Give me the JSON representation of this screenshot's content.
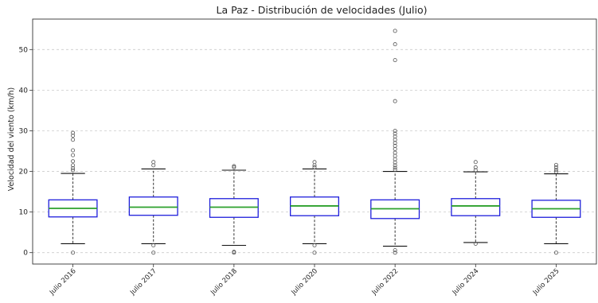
{
  "chart_data": {
    "type": "box",
    "title": "La Paz - Distribución de velocidades (Julio)",
    "xlabel": "",
    "ylabel": "Velocidad del viento (km/h)",
    "ylim": [
      -2.8,
      57.5
    ],
    "yticks": [
      0,
      10,
      20,
      30,
      40,
      50
    ],
    "grid": "y-dashed",
    "colors": {
      "box": "#1f1fdc",
      "median": "#2ca02c",
      "whisker": "#333333",
      "outlier": "#555555",
      "grid": "#cccccc"
    },
    "categories": [
      "Julio 2016",
      "Julio 2017",
      "Julio 2018",
      "Julio 2020",
      "Julio 2022",
      "Julio 2024",
      "Julio 2025"
    ],
    "boxes": [
      {
        "whislo": 2.2,
        "q1": 8.8,
        "med": 10.9,
        "q3": 13.0,
        "whishi": 19.5,
        "fliers": [
          0,
          20.3,
          20.8,
          21.5,
          22.5,
          24.0,
          25.2,
          27.8,
          28.8,
          29.5
        ]
      },
      {
        "whislo": 2.2,
        "q1": 9.2,
        "med": 11.2,
        "q3": 13.7,
        "whishi": 20.6,
        "fliers": [
          0,
          1.8,
          21.5,
          22.3
        ]
      },
      {
        "whislo": 1.8,
        "q1": 8.7,
        "med": 11.2,
        "q3": 13.3,
        "whishi": 20.3,
        "fliers": [
          0,
          0.2,
          21.0,
          21.3
        ]
      },
      {
        "whislo": 2.2,
        "q1": 9.1,
        "med": 11.5,
        "q3": 13.7,
        "whishi": 20.6,
        "fliers": [
          0,
          1.8,
          21.0,
          21.5,
          22.3
        ]
      },
      {
        "whislo": 1.6,
        "q1": 8.4,
        "med": 10.8,
        "q3": 13.0,
        "whishi": 20.0,
        "fliers": [
          0,
          0.6,
          20.4,
          20.9,
          21.5,
          22.2,
          23.0,
          23.8,
          24.6,
          25.5,
          26.3,
          27.0,
          27.8,
          28.6,
          29.3,
          30.0,
          37.3,
          47.4,
          51.3,
          54.6
        ]
      },
      {
        "whislo": 2.5,
        "q1": 9.1,
        "med": 11.5,
        "q3": 13.3,
        "whishi": 19.9,
        "fliers": [
          2.2,
          20.3,
          21.0,
          22.3
        ]
      },
      {
        "whislo": 2.2,
        "q1": 8.7,
        "med": 10.8,
        "q3": 12.9,
        "whishi": 19.4,
        "fliers": [
          0,
          19.9,
          20.4,
          21.0,
          21.6
        ]
      }
    ]
  }
}
